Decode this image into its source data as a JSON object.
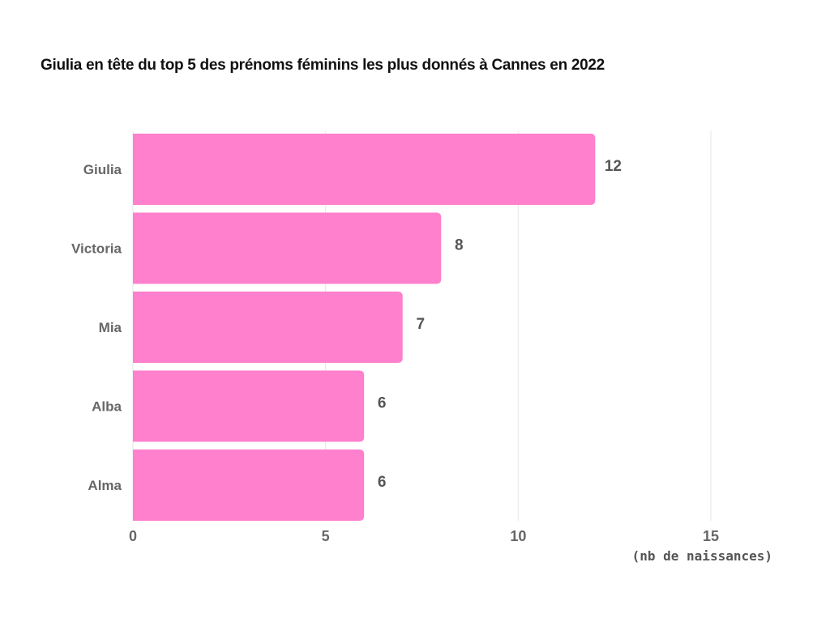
{
  "chart_data": {
    "type": "bar",
    "orientation": "horizontal",
    "title": "Giulia en tête du top 5 des prénoms féminins les plus donnés à Cannes en 2022",
    "categories": [
      "Giulia",
      "Victoria",
      "Mia",
      "Alba",
      "Alma"
    ],
    "values": [
      12,
      8,
      7,
      6,
      6
    ],
    "xlabel": "(nb de naissances)",
    "ylabel": "",
    "xlim": [
      0,
      15
    ],
    "xticks": [
      0,
      5,
      10,
      15
    ],
    "grid": true,
    "legend": "none",
    "bar_color": "#ff80cc",
    "grid_color": "#e6e6e6"
  }
}
